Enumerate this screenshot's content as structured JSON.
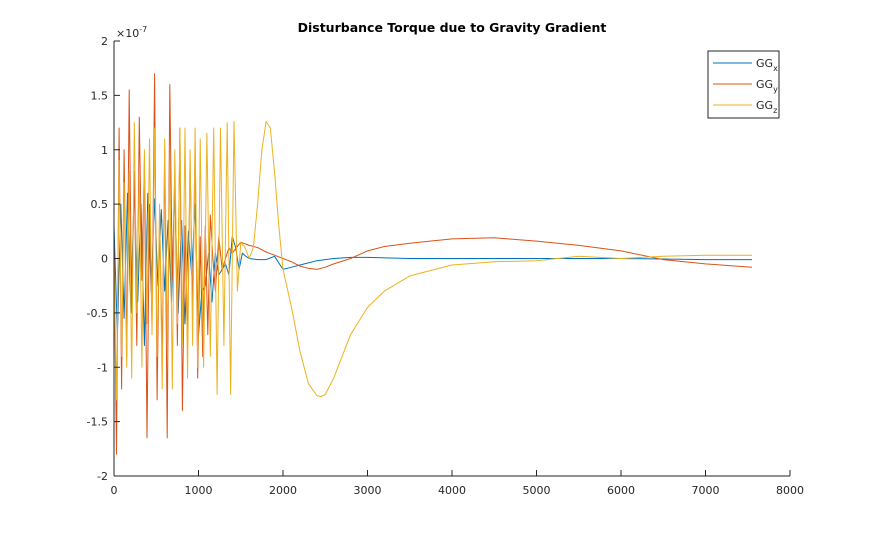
{
  "chart_data": {
    "type": "line",
    "title": "Disturbance Torque due to Gravity Gradient",
    "xlim": [
      0,
      8000
    ],
    "ylim": [
      -2,
      2
    ],
    "y_exponent_label": "×10",
    "y_exponent_power": "-7",
    "x_ticks": [
      "0",
      "1000",
      "2000",
      "3000",
      "4000",
      "5000",
      "6000",
      "7000",
      "8000"
    ],
    "x_tick_values": [
      0,
      1000,
      2000,
      3000,
      4000,
      5000,
      6000,
      7000,
      8000
    ],
    "y_ticks": [
      "-2",
      "-1.5",
      "-1",
      "-0.5",
      "0",
      "0.5",
      "1",
      "1.5",
      "2"
    ],
    "y_tick_values": [
      -2,
      -1.5,
      -1,
      -0.5,
      0,
      0.5,
      1,
      1.5,
      2
    ],
    "grid": false,
    "legend_position": "top-right",
    "series": [
      {
        "name": "GG",
        "subscript": "x",
        "color": "#0072BD",
        "x": [
          0,
          40,
          80,
          120,
          160,
          200,
          240,
          280,
          320,
          360,
          400,
          440,
          480,
          520,
          560,
          600,
          640,
          680,
          720,
          760,
          800,
          840,
          880,
          920,
          960,
          1000,
          1040,
          1080,
          1120,
          1160,
          1200,
          1240,
          1280,
          1320,
          1360,
          1400,
          1440,
          1480,
          1520,
          1560,
          1600,
          1700,
          1800,
          1900,
          2000,
          2100,
          2200,
          2300,
          2400,
          2600,
          2800,
          3000,
          3500,
          4000,
          5000,
          6000,
          7000,
          7550
        ],
        "y": [
          0.3,
          -0.7,
          0.5,
          -0.55,
          0.6,
          -0.5,
          0.7,
          -0.4,
          0.5,
          -0.8,
          0.6,
          -0.3,
          0.55,
          -0.25,
          0.45,
          -0.3,
          0.35,
          -0.4,
          0.6,
          -0.5,
          0.35,
          -0.6,
          0.25,
          -0.15,
          0.5,
          -0.7,
          -0.3,
          -0.25,
          0.05,
          -0.4,
          0.05,
          -0.15,
          -0.1,
          -0.05,
          -0.15,
          0.2,
          0.1,
          -0.1,
          0.05,
          0.02,
          0.0,
          -0.01,
          -0.01,
          0.02,
          -0.1,
          -0.08,
          -0.06,
          -0.04,
          -0.02,
          0.0,
          0.01,
          0.01,
          0.0,
          0.0,
          0.0,
          0.0,
          -0.01,
          -0.01
        ]
      },
      {
        "name": "GG",
        "subscript": "y",
        "color": "#D95319",
        "x": [
          0,
          30,
          60,
          90,
          120,
          150,
          180,
          210,
          240,
          270,
          300,
          330,
          360,
          390,
          420,
          450,
          480,
          510,
          540,
          570,
          600,
          630,
          660,
          690,
          720,
          750,
          780,
          810,
          840,
          870,
          900,
          930,
          960,
          990,
          1020,
          1050,
          1080,
          1110,
          1140,
          1170,
          1200,
          1240,
          1280,
          1320,
          1360,
          1400,
          1450,
          1500,
          1600,
          1700,
          1800,
          1900,
          2000,
          2100,
          2200,
          2300,
          2400,
          2500,
          2600,
          2800,
          3000,
          3200,
          3500,
          4000,
          4500,
          5000,
          5500,
          6000,
          6500,
          7000,
          7550
        ],
        "y": [
          0.2,
          -1.8,
          1.2,
          -1.2,
          1.0,
          -0.9,
          1.55,
          -0.5,
          0.8,
          -0.8,
          1.3,
          -0.2,
          0.9,
          -1.65,
          0.5,
          -0.6,
          1.7,
          -1.3,
          0.4,
          -0.9,
          1.0,
          -1.65,
          1.6,
          -0.2,
          0.8,
          -0.8,
          1.2,
          -1.4,
          0.3,
          -0.8,
          0.9,
          -0.5,
          1.0,
          -1.1,
          0.2,
          -0.9,
          0.3,
          -0.7,
          0.4,
          0.0,
          -0.3,
          0.2,
          -0.1,
          0.0,
          0.1,
          0.05,
          0.1,
          0.15,
          0.12,
          0.1,
          0.06,
          0.03,
          0.0,
          -0.03,
          -0.07,
          -0.09,
          -0.1,
          -0.08,
          -0.05,
          0.0,
          0.07,
          0.11,
          0.14,
          0.18,
          0.19,
          0.16,
          0.12,
          0.07,
          -0.01,
          -0.05,
          -0.08
        ]
      },
      {
        "name": "GG",
        "subscript": "z",
        "color": "#EDB120",
        "x": [
          0,
          30,
          60,
          90,
          120,
          150,
          180,
          210,
          240,
          270,
          300,
          330,
          360,
          390,
          420,
          450,
          480,
          510,
          540,
          570,
          600,
          630,
          660,
          690,
          720,
          750,
          780,
          810,
          840,
          870,
          900,
          930,
          960,
          990,
          1020,
          1060,
          1100,
          1140,
          1180,
          1220,
          1260,
          1300,
          1340,
          1380,
          1420,
          1460,
          1500,
          1550,
          1600,
          1650,
          1700,
          1750,
          1800,
          1850,
          1900,
          1950,
          2000,
          2100,
          2200,
          2300,
          2400,
          2450,
          2500,
          2600,
          2700,
          2800,
          3000,
          3200,
          3500,
          4000,
          4500,
          5000,
          5500,
          6000,
          6500,
          7000,
          7550
        ],
        "y": [
          0.0,
          -1.3,
          0.9,
          -0.9,
          0.7,
          -1.0,
          0.8,
          -1.1,
          1.25,
          -0.5,
          0.8,
          -1.0,
          1.0,
          -0.6,
          1.1,
          -0.7,
          1.2,
          -0.9,
          0.5,
          -1.2,
          1.1,
          -0.8,
          0.9,
          -1.2,
          1.0,
          -0.6,
          1.2,
          -0.8,
          1.2,
          -1.1,
          1.0,
          -0.8,
          1.2,
          -1.0,
          1.1,
          -1.0,
          1.15,
          -0.9,
          1.2,
          -1.25,
          1.2,
          -0.8,
          1.25,
          -1.25,
          1.26,
          -0.3,
          0.15,
          0.1,
          0.0,
          0.1,
          0.5,
          1.0,
          1.26,
          1.2,
          0.8,
          0.3,
          -0.1,
          -0.45,
          -0.85,
          -1.15,
          -1.26,
          -1.27,
          -1.25,
          -1.1,
          -0.9,
          -0.7,
          -0.45,
          -0.3,
          -0.16,
          -0.06,
          -0.03,
          -0.02,
          0.02,
          0.0,
          0.02,
          0.03,
          0.03
        ]
      }
    ]
  }
}
